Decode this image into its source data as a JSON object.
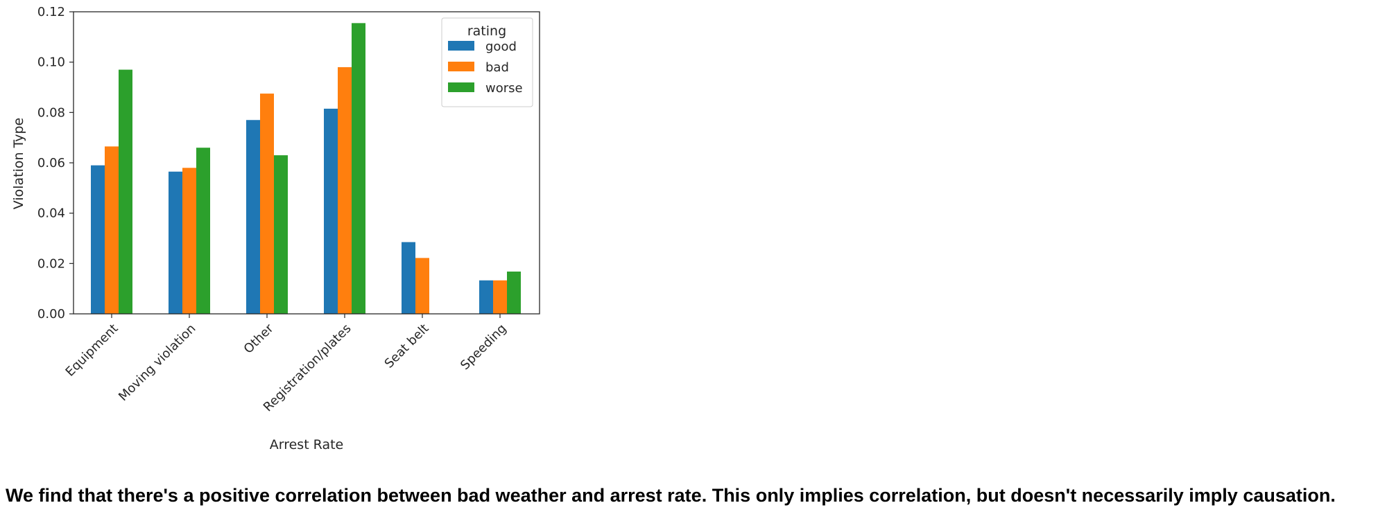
{
  "chart_data": {
    "type": "bar",
    "title": "",
    "xlabel": "Arrest Rate",
    "ylabel": "Violation Type",
    "categories": [
      "Equipment",
      "Moving violation",
      "Other",
      "Registration/plates",
      "Seat belt",
      "Speeding"
    ],
    "series": [
      {
        "name": "good",
        "color": "#1f77b4",
        "values": [
          0.059,
          0.0565,
          0.077,
          0.0815,
          0.0285,
          0.0133
        ]
      },
      {
        "name": "bad",
        "color": "#ff7f0e",
        "values": [
          0.0665,
          0.058,
          0.0875,
          0.098,
          0.0222,
          0.0133
        ]
      },
      {
        "name": "worse",
        "color": "#2ca02c",
        "values": [
          0.097,
          0.066,
          0.063,
          0.1155,
          0.0,
          0.0168
        ]
      }
    ],
    "ylim": [
      0,
      0.12
    ],
    "yticks": [
      0.0,
      0.02,
      0.04,
      0.06,
      0.08,
      0.1,
      0.12
    ],
    "ytick_labels": [
      "0.00",
      "0.02",
      "0.04",
      "0.06",
      "0.08",
      "0.10",
      "0.12"
    ],
    "legend": {
      "title": "rating",
      "placement": "top-right"
    },
    "grid": false
  },
  "caption": "We find that there's a positive correlation between bad weather and arrest rate. This only implies correlation, but doesn't necessarily imply causation."
}
